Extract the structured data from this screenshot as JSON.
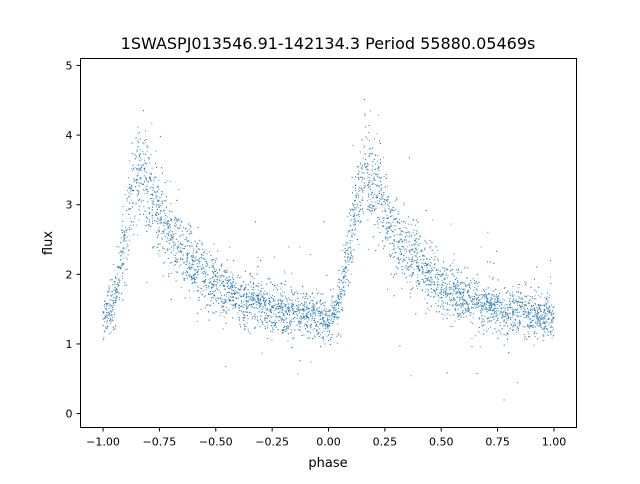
{
  "chart_data": {
    "type": "scatter",
    "title": "1SWASPJ013546.91-142134.3 Period 55880.05469s",
    "xlabel": "phase",
    "ylabel": "flux",
    "xlim": [
      -1.1,
      1.1
    ],
    "ylim": [
      -0.2,
      5.1
    ],
    "xticks": [
      -1.0,
      -0.75,
      -0.5,
      -0.25,
      0.0,
      0.25,
      0.5,
      0.75,
      1.0
    ],
    "xtick_labels": [
      "−1.00",
      "−0.75",
      "−0.50",
      "−0.25",
      "0.00",
      "0.25",
      "0.50",
      "0.75",
      "1.00"
    ],
    "yticks": [
      0,
      1,
      2,
      3,
      4,
      5
    ],
    "ytick_labels": [
      "0",
      "1",
      "2",
      "3",
      "4",
      "5"
    ],
    "grid": false,
    "point_color": "#1f77b4",
    "trend": {
      "phase": [
        0.0,
        0.05,
        0.1,
        0.125,
        0.15,
        0.175,
        0.2,
        0.25,
        0.3,
        0.35,
        0.4,
        0.45,
        0.5,
        0.55,
        0.6,
        0.65,
        0.7,
        0.75,
        0.8,
        0.85,
        0.9,
        0.95,
        1.0
      ],
      "flux": [
        1.35,
        1.6,
        2.5,
        3.0,
        3.35,
        3.45,
        3.25,
        2.9,
        2.55,
        2.35,
        2.15,
        2.0,
        1.85,
        1.75,
        1.65,
        1.6,
        1.55,
        1.5,
        1.48,
        1.45,
        1.42,
        1.4,
        1.35
      ]
    }
  }
}
